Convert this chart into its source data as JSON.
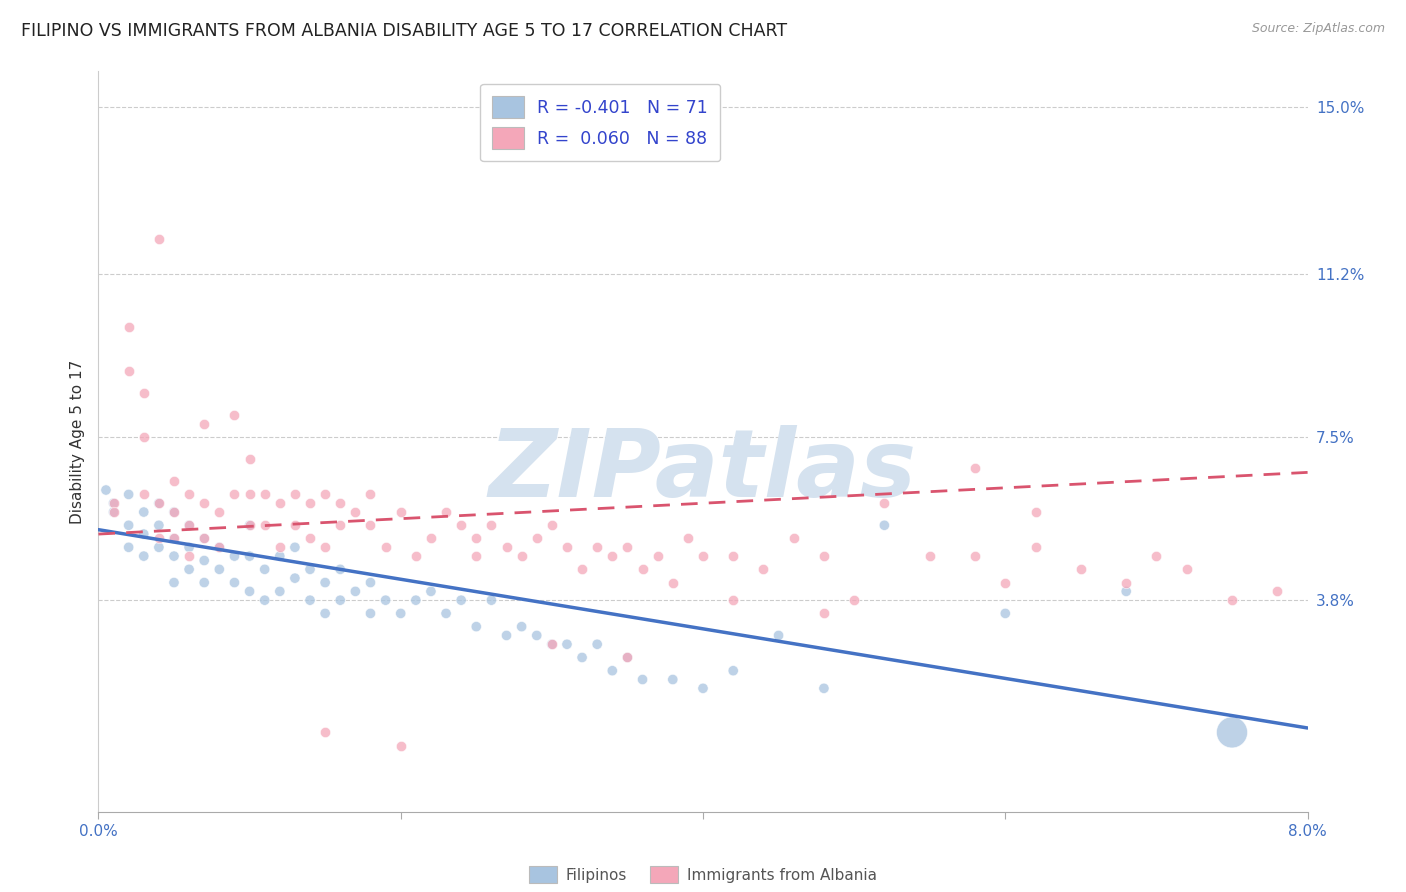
{
  "title": "FILIPINO VS IMMIGRANTS FROM ALBANIA DISABILITY AGE 5 TO 17 CORRELATION CHART",
  "source": "Source: ZipAtlas.com",
  "ylabel": "Disability Age 5 to 17",
  "ytick_labels": [
    "15.0%",
    "11.2%",
    "7.5%",
    "3.8%"
  ],
  "ytick_values": [
    0.15,
    0.112,
    0.075,
    0.038
  ],
  "xmin": 0.0,
  "xmax": 0.08,
  "ymin": -0.01,
  "ymax": 0.158,
  "legend_entries": [
    {
      "label": "Filipinos",
      "color": "#a8c4e0",
      "R": "-0.401",
      "N": "71"
    },
    {
      "label": "Immigrants from Albania",
      "color": "#f4a7b9",
      "R": " 0.060",
      "N": "88"
    }
  ],
  "watermark": "ZIPatlas",
  "filipinos_x": [
    0.0005,
    0.001,
    0.001,
    0.002,
    0.002,
    0.002,
    0.003,
    0.003,
    0.003,
    0.004,
    0.004,
    0.004,
    0.005,
    0.005,
    0.005,
    0.005,
    0.006,
    0.006,
    0.006,
    0.007,
    0.007,
    0.007,
    0.008,
    0.008,
    0.009,
    0.009,
    0.01,
    0.01,
    0.01,
    0.011,
    0.011,
    0.012,
    0.012,
    0.013,
    0.013,
    0.014,
    0.014,
    0.015,
    0.015,
    0.016,
    0.016,
    0.017,
    0.018,
    0.018,
    0.019,
    0.02,
    0.021,
    0.022,
    0.023,
    0.024,
    0.025,
    0.026,
    0.027,
    0.028,
    0.029,
    0.03,
    0.031,
    0.032,
    0.033,
    0.034,
    0.035,
    0.036,
    0.038,
    0.04,
    0.042,
    0.045,
    0.048,
    0.052,
    0.06,
    0.068,
    0.075
  ],
  "filipinos_y": [
    0.063,
    0.06,
    0.058,
    0.062,
    0.055,
    0.05,
    0.058,
    0.053,
    0.048,
    0.06,
    0.055,
    0.05,
    0.058,
    0.052,
    0.048,
    0.042,
    0.055,
    0.05,
    0.045,
    0.052,
    0.047,
    0.042,
    0.05,
    0.045,
    0.048,
    0.042,
    0.055,
    0.048,
    0.04,
    0.045,
    0.038,
    0.048,
    0.04,
    0.05,
    0.043,
    0.045,
    0.038,
    0.042,
    0.035,
    0.045,
    0.038,
    0.04,
    0.042,
    0.035,
    0.038,
    0.035,
    0.038,
    0.04,
    0.035,
    0.038,
    0.032,
    0.038,
    0.03,
    0.032,
    0.03,
    0.028,
    0.028,
    0.025,
    0.028,
    0.022,
    0.025,
    0.02,
    0.02,
    0.018,
    0.022,
    0.03,
    0.018,
    0.055,
    0.035,
    0.04,
    0.008
  ],
  "filipinos_size": [
    55,
    55,
    55,
    55,
    55,
    55,
    55,
    55,
    55,
    55,
    55,
    55,
    55,
    55,
    55,
    55,
    55,
    55,
    55,
    55,
    55,
    55,
    55,
    55,
    55,
    55,
    55,
    55,
    55,
    55,
    55,
    55,
    55,
    55,
    55,
    55,
    55,
    55,
    55,
    55,
    55,
    55,
    55,
    55,
    55,
    55,
    55,
    55,
    55,
    55,
    55,
    55,
    55,
    55,
    55,
    55,
    55,
    55,
    55,
    55,
    55,
    55,
    55,
    55,
    55,
    55,
    55,
    55,
    55,
    55,
    500
  ],
  "albania_x": [
    0.001,
    0.001,
    0.002,
    0.002,
    0.003,
    0.003,
    0.003,
    0.004,
    0.004,
    0.004,
    0.005,
    0.005,
    0.005,
    0.006,
    0.006,
    0.006,
    0.007,
    0.007,
    0.007,
    0.008,
    0.008,
    0.009,
    0.009,
    0.01,
    0.01,
    0.01,
    0.011,
    0.011,
    0.012,
    0.012,
    0.013,
    0.013,
    0.014,
    0.014,
    0.015,
    0.015,
    0.016,
    0.016,
    0.017,
    0.018,
    0.018,
    0.019,
    0.02,
    0.021,
    0.022,
    0.023,
    0.024,
    0.025,
    0.025,
    0.026,
    0.027,
    0.028,
    0.029,
    0.03,
    0.031,
    0.032,
    0.033,
    0.034,
    0.035,
    0.036,
    0.037,
    0.038,
    0.039,
    0.04,
    0.042,
    0.044,
    0.046,
    0.048,
    0.05,
    0.052,
    0.055,
    0.058,
    0.06,
    0.062,
    0.065,
    0.068,
    0.07,
    0.072,
    0.075,
    0.078,
    0.058,
    0.062,
    0.042,
    0.048,
    0.03,
    0.035,
    0.015,
    0.02
  ],
  "albania_y": [
    0.06,
    0.058,
    0.1,
    0.09,
    0.085,
    0.075,
    0.062,
    0.06,
    0.052,
    0.12,
    0.065,
    0.058,
    0.052,
    0.062,
    0.055,
    0.048,
    0.078,
    0.06,
    0.052,
    0.058,
    0.05,
    0.08,
    0.062,
    0.07,
    0.062,
    0.055,
    0.062,
    0.055,
    0.06,
    0.05,
    0.062,
    0.055,
    0.06,
    0.052,
    0.062,
    0.05,
    0.06,
    0.055,
    0.058,
    0.062,
    0.055,
    0.05,
    0.058,
    0.048,
    0.052,
    0.058,
    0.055,
    0.052,
    0.048,
    0.055,
    0.05,
    0.048,
    0.052,
    0.055,
    0.05,
    0.045,
    0.05,
    0.048,
    0.05,
    0.045,
    0.048,
    0.042,
    0.052,
    0.048,
    0.048,
    0.045,
    0.052,
    0.048,
    0.038,
    0.06,
    0.048,
    0.048,
    0.042,
    0.05,
    0.045,
    0.042,
    0.048,
    0.045,
    0.038,
    0.04,
    0.068,
    0.058,
    0.038,
    0.035,
    0.028,
    0.025,
    0.008,
    0.005
  ],
  "blue_color": "#a8c4e0",
  "pink_color": "#f4a7b9",
  "blue_line_color": "#4472c4",
  "pink_line_color": "#d9546e",
  "grid_color": "#cccccc",
  "background_color": "#ffffff",
  "title_fontsize": 12.5,
  "axis_label_fontsize": 11,
  "tick_fontsize": 11,
  "watermark_color": "#d5e2ef",
  "blue_trend_start_x": 0.0,
  "blue_trend_start_y": 0.054,
  "blue_trend_end_x": 0.08,
  "blue_trend_end_y": 0.009,
  "pink_trend_start_x": 0.0,
  "pink_trend_start_y": 0.053,
  "pink_trend_end_x": 0.08,
  "pink_trend_end_y": 0.067
}
